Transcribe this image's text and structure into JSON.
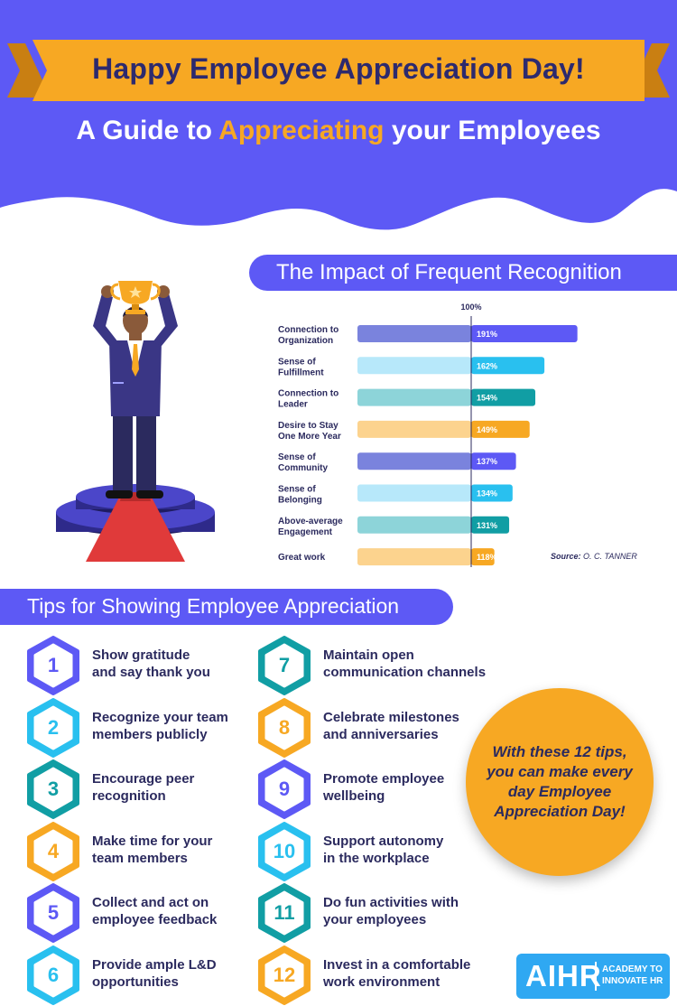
{
  "header": {
    "banner_title": "Happy Employee Appreciation Day!",
    "subtitle_before": "A Guide to ",
    "subtitle_highlight": "Appreciating",
    "subtitle_after": " your Employees"
  },
  "chart_section": {
    "heading": "The Impact of Frequent Recognition",
    "source_label": "Source:",
    "source_value": "O. C. TANNER"
  },
  "chart_data": {
    "type": "bar",
    "title": "The Impact of Frequent Recognition",
    "reference_label": "100%",
    "reference_value": 100,
    "categories": [
      [
        "Connection to",
        "Organization"
      ],
      [
        "Sense of",
        "Fulfillment"
      ],
      [
        "Connection to",
        "Leader"
      ],
      [
        "Desire to Stay",
        "One More Year"
      ],
      [
        "Sense of",
        "Community"
      ],
      [
        "Sense of",
        "Belonging"
      ],
      [
        "Above-average",
        "Engagement"
      ],
      [
        "Great work"
      ]
    ],
    "values": [
      191,
      162,
      154,
      149,
      137,
      134,
      131,
      118
    ],
    "value_labels": [
      "191%",
      "162%",
      "154%",
      "149%",
      "137%",
      "134%",
      "131%",
      "118%"
    ],
    "colors": [
      "#5d59f5",
      "#29c0ef",
      "#119ea4",
      "#f7a823",
      "#5d59f5",
      "#29c0ef",
      "#119ea4",
      "#f7a823"
    ],
    "light_colors": [
      "#7a83dd",
      "#b7e8fa",
      "#8dd4d9",
      "#fcd38e",
      "#7a83dd",
      "#b7e8fa",
      "#8dd4d9",
      "#fcd38e"
    ],
    "xlim": [
      0,
      200
    ]
  },
  "tips_section": {
    "heading": "Tips for Showing Employee Appreciation",
    "tips": [
      {
        "number": "1",
        "line1": "Show gratitude",
        "line2": "and say thank you",
        "color": "#5d59f5"
      },
      {
        "number": "2",
        "line1": "Recognize your team",
        "line2": "members publicly",
        "color": "#29c0ef"
      },
      {
        "number": "3",
        "line1": "Encourage peer",
        "line2": "recognition",
        "color": "#119ea4"
      },
      {
        "number": "4",
        "line1": "Make time for your",
        "line2": "team members",
        "color": "#f7a823"
      },
      {
        "number": "5",
        "line1": "Collect and act on",
        "line2": "employee feedback",
        "color": "#5d59f5"
      },
      {
        "number": "6",
        "line1": "Provide ample L&D",
        "line2": "opportunities",
        "color": "#29c0ef"
      },
      {
        "number": "7",
        "line1": "Maintain open",
        "line2": "communication channels",
        "color": "#119ea4"
      },
      {
        "number": "8",
        "line1": "Celebrate milestones",
        "line2": "and anniversaries",
        "color": "#f7a823"
      },
      {
        "number": "9",
        "line1": "Promote employee",
        "line2": "wellbeing",
        "color": "#5d59f5"
      },
      {
        "number": "10",
        "line1": "Support autonomy",
        "line2": "in the workplace",
        "color": "#29c0ef"
      },
      {
        "number": "11",
        "line1": "Do fun activities with",
        "line2": "your employees",
        "color": "#119ea4"
      },
      {
        "number": "12",
        "line1": "Invest in a comfortable",
        "line2": "work environment",
        "color": "#f7a823"
      }
    ]
  },
  "callout": {
    "text": "With these 12 tips, you can make every day Employee Appreciation Day!"
  },
  "logo": {
    "mark": "AIHR",
    "tagline_1": "ACADEMY TO",
    "tagline_2": "INNOVATE HR"
  },
  "colors": {
    "primary": "#5d59f5",
    "accent": "#f7a823",
    "navy": "#2b2a5e",
    "cyan": "#29c0ef",
    "teal": "#119ea4"
  }
}
